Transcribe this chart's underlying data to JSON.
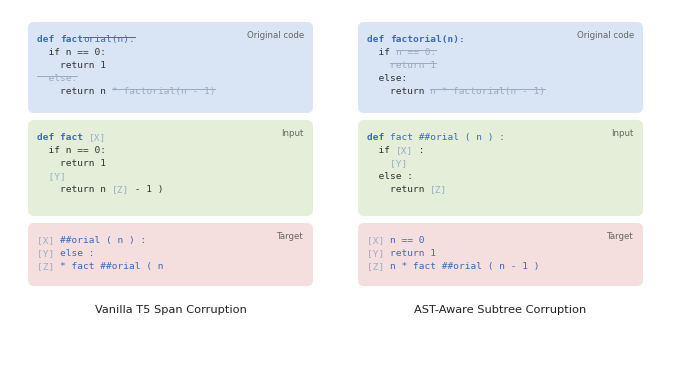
{
  "bg_color": "#ffffff",
  "left_title": "Vanilla T5 Span Corruption",
  "right_title": "AST-Aware Subtree Corruption",
  "box_colors": {
    "original": "#d9e5f5",
    "input": "#e5eed9",
    "target": "#f5dede"
  },
  "left_boxes": {
    "original": {
      "label": "Original code",
      "lines": [
        [
          {
            "text": "def ",
            "color": "#3a6bbf",
            "bold": true,
            "ul": false
          },
          {
            "text": "fact",
            "color": "#3a6bbf",
            "bold": true,
            "ul": false
          },
          {
            "text": "orial(n):",
            "color": "#3a6bbf",
            "bold": false,
            "ul": true
          }
        ],
        [
          {
            "text": "  if n == 0:",
            "color": "#333333",
            "bold": false,
            "ul": false
          }
        ],
        [
          {
            "text": "    return 1",
            "color": "#333333",
            "bold": false,
            "ul": false
          }
        ],
        [
          {
            "text": "  else:",
            "color": "#9aabbc",
            "bold": false,
            "ul": true
          }
        ],
        [
          {
            "text": "    return n ",
            "color": "#333333",
            "bold": false,
            "ul": false
          },
          {
            "text": "* factorial(n - 1)",
            "color": "#9aabbc",
            "bold": false,
            "ul": true
          }
        ]
      ]
    },
    "input": {
      "label": "Input",
      "lines": [
        [
          {
            "text": "def ",
            "color": "#3a6bbf",
            "bold": true,
            "ul": false
          },
          {
            "text": "fact ",
            "color": "#3a6bbf",
            "bold": true,
            "ul": false
          },
          {
            "text": "[X]",
            "color": "#9ab0c8",
            "bold": false,
            "ul": false
          }
        ],
        [
          {
            "text": "  if n == 0:",
            "color": "#333333",
            "bold": false,
            "ul": false
          }
        ],
        [
          {
            "text": "    return 1",
            "color": "#333333",
            "bold": false,
            "ul": false
          }
        ],
        [
          {
            "text": "  [Y]",
            "color": "#9ab0c8",
            "bold": false,
            "ul": false
          }
        ],
        [
          {
            "text": "    return n ",
            "color": "#333333",
            "bold": false,
            "ul": false
          },
          {
            "text": "[Z]",
            "color": "#9ab0c8",
            "bold": false,
            "ul": false
          },
          {
            "text": " - 1 )",
            "color": "#333333",
            "bold": false,
            "ul": false
          }
        ]
      ]
    },
    "target": {
      "label": "Target",
      "lines": [
        [
          {
            "text": "[X] ",
            "color": "#9ab0c8",
            "bold": false,
            "ul": false
          },
          {
            "text": "##orial ( n ) :",
            "color": "#3a6bbf",
            "bold": false,
            "ul": false
          }
        ],
        [
          {
            "text": "[Y] ",
            "color": "#9ab0c8",
            "bold": false,
            "ul": false
          },
          {
            "text": "else :",
            "color": "#3a6bbf",
            "bold": false,
            "ul": false
          }
        ],
        [
          {
            "text": "[Z] ",
            "color": "#9ab0c8",
            "bold": false,
            "ul": false
          },
          {
            "text": "* fact ##orial ( n",
            "color": "#3a6bbf",
            "bold": false,
            "ul": false
          }
        ]
      ]
    }
  },
  "right_boxes": {
    "original": {
      "label": "Original code",
      "lines": [
        [
          {
            "text": "def ",
            "color": "#3a6bbf",
            "bold": true,
            "ul": false
          },
          {
            "text": "factorial(n):",
            "color": "#3a6bbf",
            "bold": true,
            "ul": false
          }
        ],
        [
          {
            "text": "  if ",
            "color": "#333333",
            "bold": false,
            "ul": false
          },
          {
            "text": "n == 0:",
            "color": "#9aabbc",
            "bold": false,
            "ul": true
          }
        ],
        [
          {
            "text": "    ",
            "color": "#333333",
            "bold": false,
            "ul": false
          },
          {
            "text": "return 1",
            "color": "#9aabbc",
            "bold": false,
            "ul": true
          }
        ],
        [
          {
            "text": "  else:",
            "color": "#333333",
            "bold": false,
            "ul": false
          }
        ],
        [
          {
            "text": "    return ",
            "color": "#333333",
            "bold": false,
            "ul": false
          },
          {
            "text": "n * factorial(n - 1)",
            "color": "#9aabbc",
            "bold": false,
            "ul": true
          }
        ]
      ]
    },
    "input": {
      "label": "Input",
      "lines": [
        [
          {
            "text": "def ",
            "color": "#3a6bbf",
            "bold": true,
            "ul": false
          },
          {
            "text": "fact ##orial ( n ) :",
            "color": "#3a6bbf",
            "bold": false,
            "ul": false
          }
        ],
        [
          {
            "text": "  if ",
            "color": "#333333",
            "bold": false,
            "ul": false
          },
          {
            "text": "[X]",
            "color": "#9ab0c8",
            "bold": false,
            "ul": false
          },
          {
            "text": " :",
            "color": "#333333",
            "bold": false,
            "ul": false
          }
        ],
        [
          {
            "text": "    [Y]",
            "color": "#9ab0c8",
            "bold": false,
            "ul": false
          }
        ],
        [
          {
            "text": "  else :",
            "color": "#333333",
            "bold": false,
            "ul": false
          }
        ],
        [
          {
            "text": "    return ",
            "color": "#333333",
            "bold": false,
            "ul": false
          },
          {
            "text": "[Z]",
            "color": "#9ab0c8",
            "bold": false,
            "ul": false
          }
        ]
      ]
    },
    "target": {
      "label": "Target",
      "lines": [
        [
          {
            "text": "[X] ",
            "color": "#9ab0c8",
            "bold": false,
            "ul": false
          },
          {
            "text": "n == 0",
            "color": "#3a6bbf",
            "bold": false,
            "ul": false
          }
        ],
        [
          {
            "text": "[Y] ",
            "color": "#9ab0c8",
            "bold": false,
            "ul": false
          },
          {
            "text": "return 1",
            "color": "#3a6bbf",
            "bold": false,
            "ul": false
          }
        ],
        [
          {
            "text": "[Z] ",
            "color": "#9ab0c8",
            "bold": false,
            "ul": false
          },
          {
            "text": "n * fact ##orial ( n - 1 )",
            "color": "#3a6bbf",
            "bold": false,
            "ul": false
          }
        ]
      ]
    }
  }
}
